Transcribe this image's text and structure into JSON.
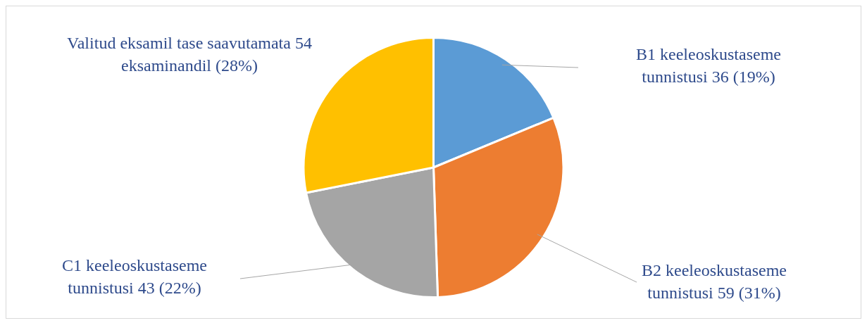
{
  "chart_data": {
    "type": "pie",
    "categories": [
      "B1 keeleoskustaseme tunnistusi 36 (19%)",
      "B2 keeleoskustaseme tunnistusi 59 (31%)",
      "C1 keeleoskustaseme tunnistusi 43 (22%)",
      "Valitud eksamil tase saavutamata 54 eksaminandil (28%)"
    ],
    "values": [
      36,
      59,
      43,
      54
    ],
    "colors": [
      "#5b9bd5",
      "#ed7d31",
      "#a5a5a5",
      "#ffc000"
    ],
    "legend": false
  }
}
